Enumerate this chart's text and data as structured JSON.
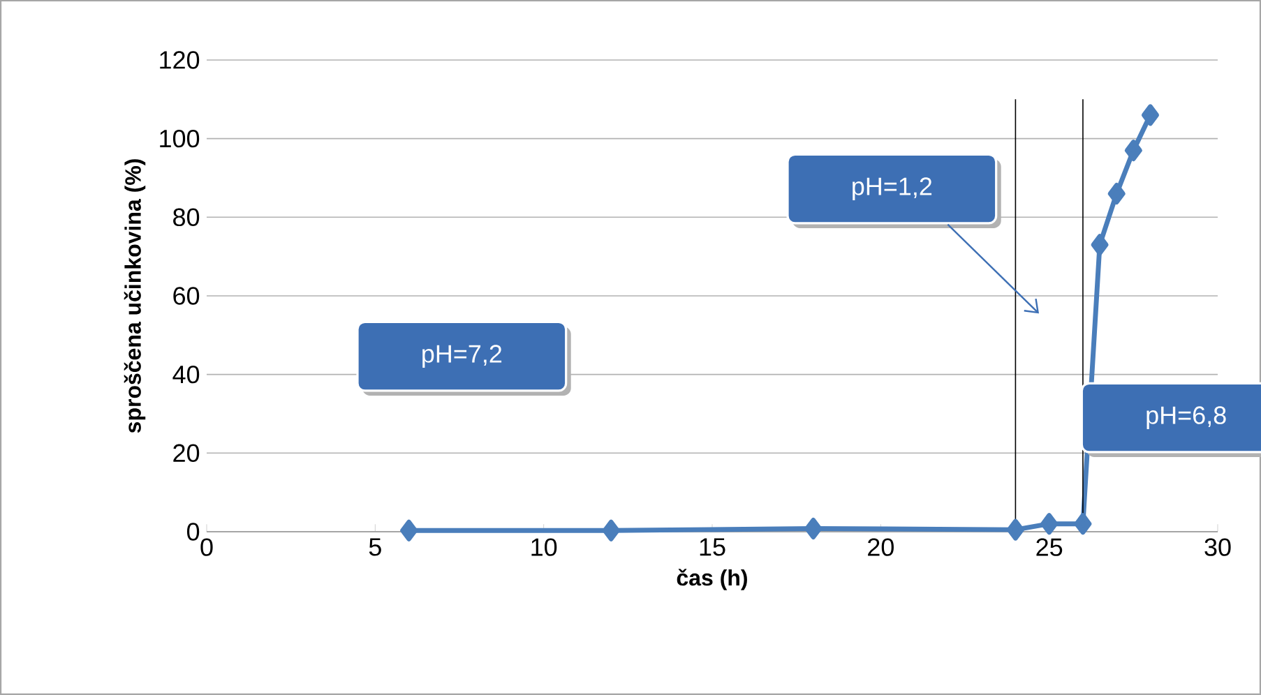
{
  "chart_data": {
    "type": "line",
    "xlabel": "čas (h)",
    "ylabel": "sproščena učinkovina (%)",
    "x": [
      6,
      12,
      18,
      24,
      25,
      26,
      26.5,
      27,
      27.5,
      28
    ],
    "series": [
      {
        "color": "#4a7ebb",
        "values": [
          0.3,
          0.3,
          0.8,
          0.5,
          2,
          2,
          73,
          86,
          97,
          106
        ]
      }
    ],
    "xlim": [
      0,
      30
    ],
    "ylim": [
      0,
      120
    ],
    "xticks": [
      0,
      5,
      10,
      15,
      20,
      25,
      30
    ],
    "yticks": [
      0,
      20,
      40,
      60,
      80,
      100,
      120
    ],
    "grid": "y",
    "marker": "diamond",
    "line_style": "solid",
    "ref_lines": [
      {
        "axis": "x",
        "value": 24,
        "color": "#000000"
      },
      {
        "axis": "x",
        "value": 26,
        "color": "#000000"
      }
    ],
    "annotations": [
      "pH=7,2",
      "pH=1,2",
      "pH=6,8"
    ]
  }
}
